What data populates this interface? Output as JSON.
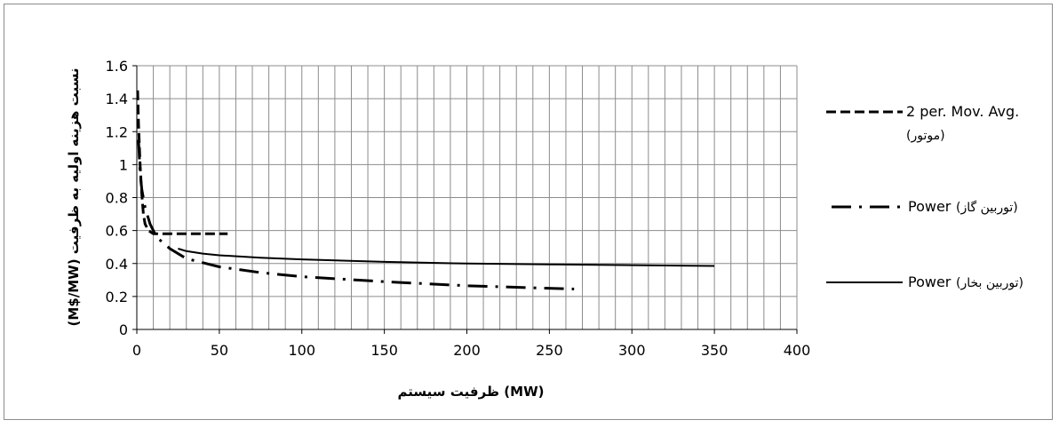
{
  "chart_data": {
    "type": "line",
    "title": "",
    "xlabel": "ظرفیت سیستم  (MW)",
    "ylabel": "(M$/MW)  نسبت هزینه اولیه به ظرفیت",
    "xlim": [
      0,
      400
    ],
    "ylim": [
      0,
      1.6
    ],
    "x_ticks": [
      "0",
      "50",
      "100",
      "150",
      "200",
      "250",
      "300",
      "350",
      "400"
    ],
    "y_ticks": [
      "0",
      "0.2",
      "0.4",
      "0.6",
      "0.8",
      "1",
      "1.2",
      "1.4",
      "1.6"
    ],
    "grid": {
      "major_x_step": 10,
      "major_y_step": 0.2,
      "on": true
    },
    "legend_position": "right",
    "series": [
      {
        "name": "2 per. Mov. Avg. (موتور)",
        "legend_line1": "2 per. Mov. Avg.",
        "legend_line2": "(موتور)",
        "style": "dashed",
        "x": [
          0.5,
          1,
          2,
          3,
          4,
          5,
          7,
          10,
          15,
          25,
          40,
          55
        ],
        "y": [
          1.45,
          1.25,
          1.0,
          0.82,
          0.7,
          0.64,
          0.6,
          0.58,
          0.58,
          0.58,
          0.58,
          0.58
        ]
      },
      {
        "name": "Power (توربین گاز)",
        "legend_text": "Power",
        "legend_fa": "(توربین گاز)",
        "style": "dash-dot",
        "x": [
          1,
          2,
          3,
          5,
          8,
          12,
          20,
          30,
          50,
          75,
          100,
          150,
          200,
          265
        ],
        "y": [
          1.15,
          0.95,
          0.85,
          0.74,
          0.64,
          0.56,
          0.49,
          0.43,
          0.38,
          0.345,
          0.32,
          0.29,
          0.265,
          0.245
        ]
      },
      {
        "name": "Power (توربین بخار)",
        "legend_text": "Power",
        "legend_fa": "(توربین بخار)",
        "style": "solid",
        "x": [
          25,
          30,
          40,
          50,
          75,
          100,
          150,
          200,
          250,
          300,
          350
        ],
        "y": [
          0.49,
          0.475,
          0.46,
          0.45,
          0.435,
          0.425,
          0.41,
          0.4,
          0.395,
          0.39,
          0.385
        ]
      }
    ]
  }
}
